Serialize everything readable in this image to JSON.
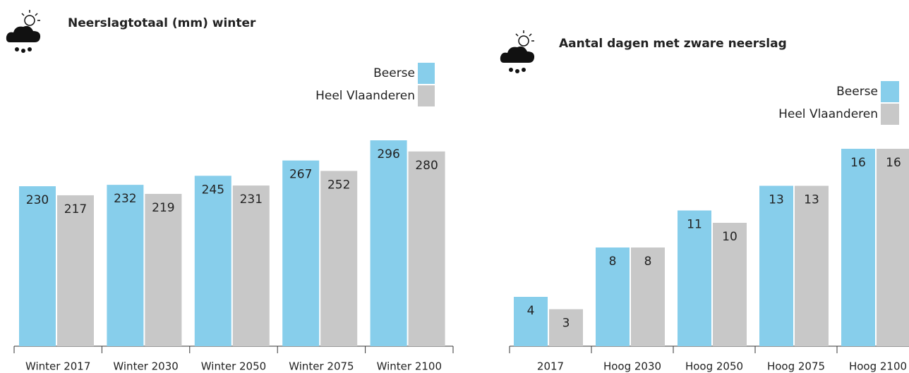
{
  "chart_data": [
    {
      "type": "bar",
      "title": "Neerslagtotaal (mm) winter",
      "categories": [
        "Winter 2017",
        "Winter 2030",
        "Winter 2050",
        "Winter 2075",
        "Winter 2100"
      ],
      "series": [
        {
          "name": "Beerse",
          "color": "#87ceeb",
          "values": [
            230,
            232,
            245,
            267,
            296
          ]
        },
        {
          "name": "Heel Vlaanderen",
          "color": "#c8c8c8",
          "values": [
            217,
            219,
            231,
            252,
            280
          ]
        }
      ],
      "legend": "top-right"
    },
    {
      "type": "bar",
      "title": "Aantal dagen met zware neerslag",
      "categories": [
        "2017",
        "Hoog 2030",
        "Hoog 2050",
        "Hoog 2075",
        "Hoog 2100"
      ],
      "series": [
        {
          "name": "Beerse",
          "color": "#87ceeb",
          "values": [
            4,
            8,
            11,
            13,
            16
          ]
        },
        {
          "name": "Heel Vlaanderen",
          "color": "#c8c8c8",
          "values": [
            3,
            8,
            10,
            13,
            16
          ]
        }
      ],
      "legend": "top-right"
    }
  ]
}
